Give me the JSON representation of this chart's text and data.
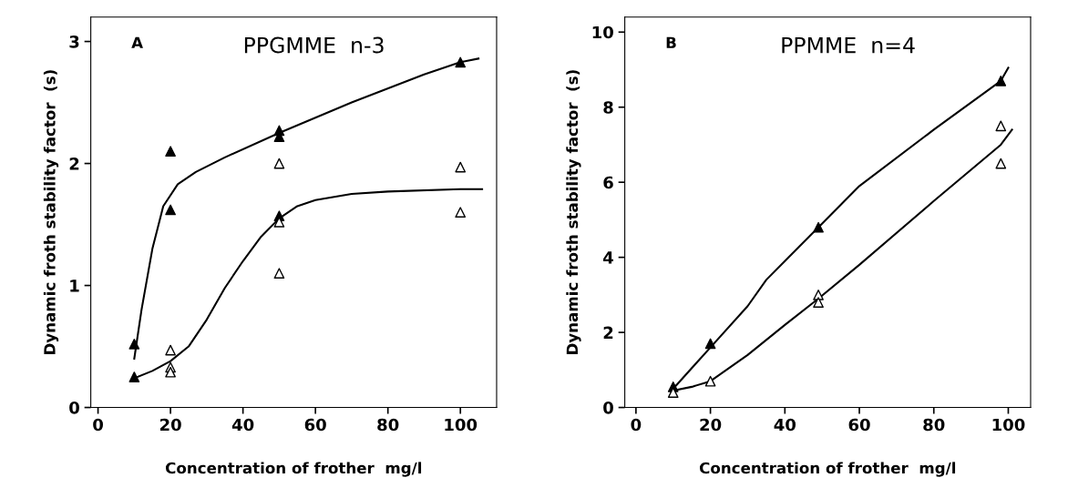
{
  "chart_data": [
    {
      "type": "scatter",
      "title": "PPGMME  n-3",
      "annotations": [
        "A"
      ],
      "xlabel": "Concentration of frother  mg/l",
      "ylabel": "Dynamic froth stability factor  (s)",
      "xlim": [
        -2,
        110
      ],
      "ylim": [
        0,
        3.2
      ],
      "xticks": [
        0,
        20,
        40,
        60,
        80,
        100
      ],
      "yticks": [
        0,
        1,
        2,
        3
      ],
      "grid": false,
      "legend": false,
      "series": [
        {
          "color": "#000000",
          "marker": "triangle",
          "x": [
            10,
            10,
            20,
            20,
            50,
            50,
            50,
            100
          ],
          "values": [
            0.52,
            0.25,
            2.1,
            1.62,
            2.27,
            2.22,
            1.57,
            2.83
          ]
        },
        {
          "color": "#ffffff",
          "marker": "triangle",
          "x": [
            20,
            20,
            20,
            50,
            50,
            50,
            100,
            100
          ],
          "values": [
            0.47,
            0.33,
            0.29,
            2.0,
            1.52,
            1.1,
            1.97,
            1.6
          ]
        },
        {
          "type": "line",
          "marker": "none",
          "color": "#000000",
          "x": [
            10,
            12,
            15,
            18,
            22,
            27,
            35,
            50,
            70,
            90,
            100,
            105
          ],
          "values": [
            0.4,
            0.8,
            1.3,
            1.65,
            1.83,
            1.93,
            2.05,
            2.25,
            2.5,
            2.73,
            2.83,
            2.86
          ]
        },
        {
          "type": "line",
          "marker": "none",
          "color": "#000000",
          "x": [
            10,
            15,
            20,
            25,
            30,
            35,
            40,
            45,
            50,
            55,
            60,
            70,
            80,
            100,
            106
          ],
          "values": [
            0.24,
            0.3,
            0.38,
            0.5,
            0.72,
            0.98,
            1.2,
            1.4,
            1.55,
            1.65,
            1.7,
            1.75,
            1.77,
            1.79,
            1.79
          ]
        }
      ]
    },
    {
      "type": "scatter",
      "title": "PPMME  n=4",
      "annotations": [
        "B"
      ],
      "xlabel": "Concentration of frother  mg/l",
      "ylabel": "Dynamic froth stability factor  (s)",
      "xlim": [
        -3,
        106
      ],
      "ylim": [
        0,
        10.4
      ],
      "xticks": [
        0,
        20,
        40,
        60,
        80,
        100
      ],
      "yticks": [
        0,
        2,
        4,
        6,
        8,
        10
      ],
      "grid": false,
      "legend": false,
      "series": [
        {
          "color": "#000000",
          "marker": "triangle",
          "x": [
            10,
            20,
            49,
            98
          ],
          "values": [
            0.55,
            1.7,
            4.8,
            8.7
          ]
        },
        {
          "color": "#ffffff",
          "marker": "triangle",
          "x": [
            10,
            20,
            49,
            49,
            98,
            98
          ],
          "values": [
            0.4,
            0.7,
            3.0,
            2.8,
            7.5,
            6.5
          ]
        },
        {
          "type": "line",
          "marker": "none",
          "color": "#000000",
          "x": [
            10,
            20,
            30,
            35,
            40,
            49,
            60,
            80,
            98,
            100
          ],
          "values": [
            0.5,
            1.6,
            2.7,
            3.4,
            3.9,
            4.8,
            5.9,
            7.4,
            8.7,
            9.05
          ]
        },
        {
          "type": "line",
          "marker": "none",
          "color": "#000000",
          "x": [
            10,
            15,
            20,
            30,
            40,
            49,
            60,
            80,
            98,
            101
          ],
          "values": [
            0.45,
            0.55,
            0.7,
            1.4,
            2.2,
            2.9,
            3.8,
            5.5,
            7.0,
            7.4
          ]
        }
      ]
    }
  ]
}
